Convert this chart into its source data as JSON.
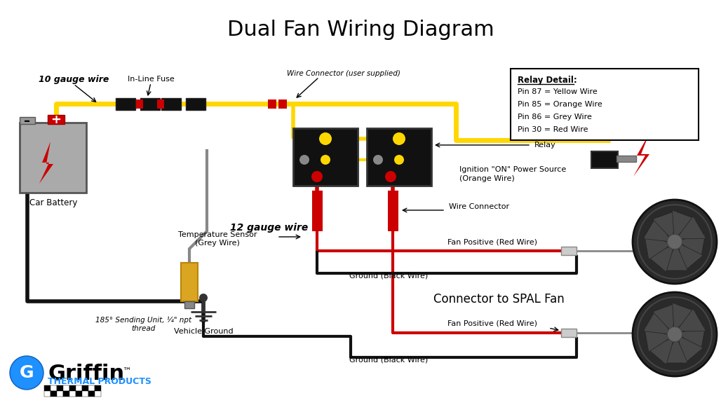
{
  "title": "Dual Fan Wiring Diagram",
  "title_fontsize": 22,
  "bg_color": "#ffffff",
  "relay_box": {
    "title": "Relay Detail:",
    "lines": [
      "Pin 87 = Yellow Wire",
      "Pin 85 = Orange Wire",
      "Pin 86 = Grey Wire",
      "Pin 30 = Red Wire"
    ]
  },
  "labels": {
    "ten_gauge": "10 gauge wire",
    "inline_fuse": "In-Line Fuse",
    "wire_connector_user": "Wire Connector (user supplied)",
    "relay": "Relay",
    "temp_sensor": "Temperature Sensor\n(Grey Wire)",
    "sending_unit": "185° Sending Unit, ¼\" npt\nthread",
    "twelve_gauge": "12 gauge wire",
    "ignition_line1": "Ignition \"ON\" Power Source",
    "ignition_line2": "(Orange Wire)",
    "wire_connector": "Wire Connector",
    "fan_positive_1": "Fan Positive (Red Wire)",
    "ground_1": "Ground (Black Wire)",
    "connector_spal": "Connector to SPAL Fan",
    "fan_positive_2": "Fan Positive (Red Wire)",
    "ground_2": "Ground (Black Wire)",
    "car_battery": "Car Battery",
    "vehicle_ground": "Vehicle Ground",
    "griffin_name": "Griffin",
    "griffin_tm": "™",
    "griffin_sub": "THERMAL PRODUCTS"
  },
  "colors": {
    "yellow": "#FFD700",
    "red": "#CC0000",
    "black": "#111111",
    "grey": "#888888",
    "orange": "#FF8C00",
    "white": "#FFFFFF",
    "battery_bg": "#AAAAAA",
    "sensor_color": "#DAA520",
    "blue": "#1E90FF",
    "dark_grey": "#555555",
    "light_grey": "#CCCCCC"
  }
}
